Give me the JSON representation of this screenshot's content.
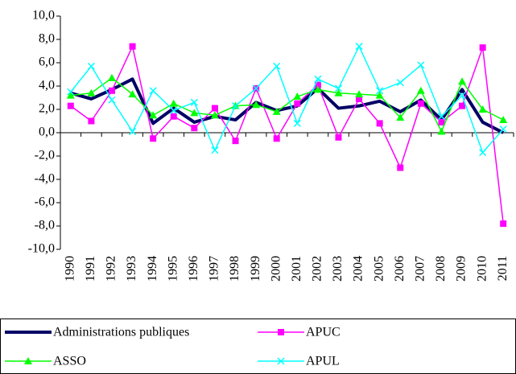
{
  "chart_data": {
    "type": "line",
    "categories": [
      "1990",
      "1991",
      "1992",
      "1993",
      "1994",
      "1995",
      "1996",
      "1997",
      "1998",
      "1999",
      "2000",
      "2001",
      "2002",
      "2003",
      "2004",
      "2005",
      "2006",
      "2007",
      "2008",
      "2009",
      "2010",
      "2011"
    ],
    "series": [
      {
        "name": "Administrations publiques",
        "color": "#000066",
        "marker": "none",
        "width": 4,
        "values": [
          3.4,
          2.9,
          3.7,
          4.6,
          0.8,
          2.1,
          0.9,
          1.4,
          1.1,
          2.6,
          1.9,
          2.3,
          3.8,
          2.1,
          2.3,
          2.7,
          1.8,
          2.8,
          1.1,
          3.7,
          0.9,
          0.0
        ]
      },
      {
        "name": "APUC",
        "color": "#ff00ff",
        "marker": "square",
        "width": 1.5,
        "values": [
          2.3,
          1.0,
          3.6,
          7.4,
          -0.5,
          1.4,
          0.4,
          2.1,
          -0.7,
          3.8,
          -0.5,
          2.5,
          4.1,
          -0.4,
          2.9,
          0.8,
          -3.0,
          2.5,
          0.9,
          2.3,
          7.3,
          -7.8
        ]
      },
      {
        "name": "ASSO",
        "color": "#00ff00",
        "marker": "triangle",
        "width": 1.5,
        "values": [
          3.2,
          3.4,
          4.7,
          3.3,
          1.5,
          2.5,
          1.7,
          1.5,
          2.3,
          2.4,
          1.8,
          3.1,
          3.7,
          3.4,
          3.3,
          3.2,
          1.3,
          3.6,
          0.1,
          4.4,
          2.0,
          1.1
        ]
      },
      {
        "name": "APUL",
        "color": "#00ffff",
        "marker": "x",
        "width": 1.5,
        "values": [
          3.5,
          5.7,
          2.8,
          0.1,
          3.6,
          1.9,
          2.6,
          -1.5,
          2.3,
          3.8,
          5.7,
          0.8,
          4.6,
          3.8,
          7.4,
          3.6,
          4.3,
          5.8,
          1.4,
          3.2,
          -1.7,
          0.3
        ]
      }
    ],
    "ylim": [
      -10,
      10
    ],
    "yticks": [
      {
        "value": -10,
        "label": "-10,0"
      },
      {
        "value": -8,
        "label": "-8,0"
      },
      {
        "value": -6,
        "label": "-6,0"
      },
      {
        "value": -4,
        "label": "-4,0"
      },
      {
        "value": -2,
        "label": "-2,0"
      },
      {
        "value": 0,
        "label": "0,0"
      },
      {
        "value": 2,
        "label": "2,0"
      },
      {
        "value": 4,
        "label": "4,0"
      },
      {
        "value": 6,
        "label": "6,0"
      },
      {
        "value": 8,
        "label": "8,0"
      },
      {
        "value": 10,
        "label": "10,0"
      }
    ],
    "legend": "bottom"
  }
}
